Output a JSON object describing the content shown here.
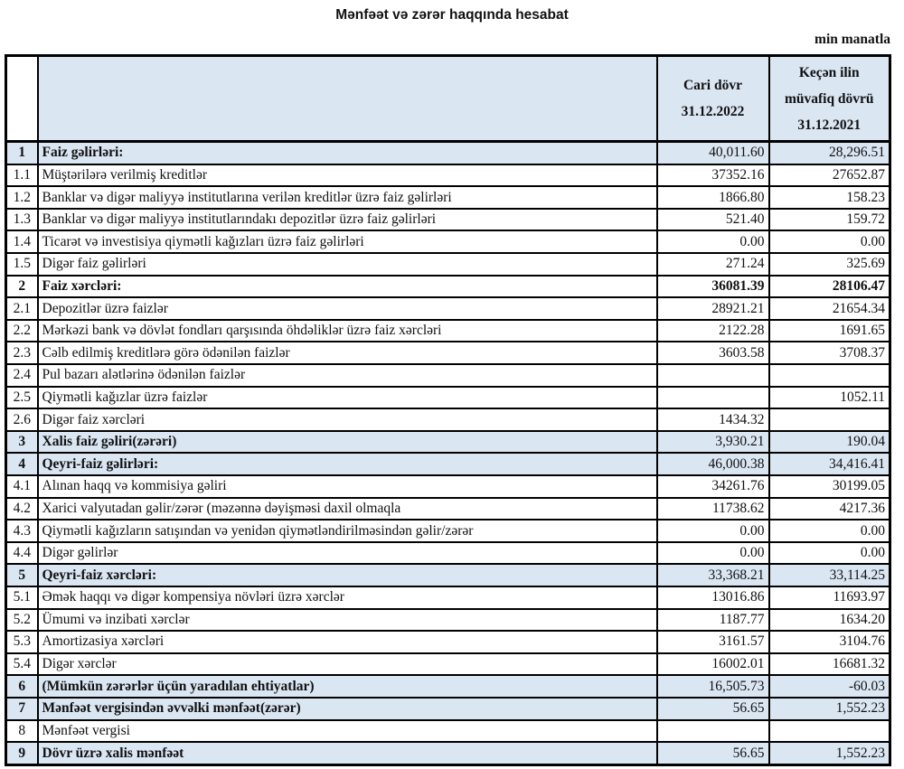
{
  "page": {
    "title": "Mənfəət və zərər haqqında hesabat",
    "unit_note": "min manatla"
  },
  "colors": {
    "shaded_bg": "#dbe6f3",
    "border": "#000000"
  },
  "table": {
    "columns": {
      "current": [
        "Cari dövr",
        "31.12.2022"
      ],
      "previous": [
        "Keçən ilin",
        "müvafiq dövrü",
        "31.12.2021"
      ]
    },
    "rows": [
      {
        "num": "1",
        "label": "Faiz gəlirləri:",
        "v2022": "40,011.60",
        "v2021": "28,296.51",
        "bold": true,
        "shaded": true,
        "values_bold": false
      },
      {
        "num": "1.1",
        "label": "Müştərilərə verilmiş kreditlər",
        "v2022": "37352.16",
        "v2021": "27652.87",
        "bold": false,
        "shaded": false,
        "values_bold": false
      },
      {
        "num": "1.2",
        "label": "Banklar və digər maliyyə institutlarına verilən kreditlər üzrə faiz gəlirləri",
        "v2022": "1866.80",
        "v2021": "158.23",
        "bold": false,
        "shaded": false,
        "values_bold": false
      },
      {
        "num": "1.3",
        "label": "Banklar və digər maliyyə institutlarındakı depozitlər üzrə faiz gəlirləri",
        "v2022": "521.40",
        "v2021": "159.72",
        "bold": false,
        "shaded": false,
        "values_bold": false
      },
      {
        "num": "1.4",
        "label": "Ticarət və investisiya qiymətli kağızları üzrə faiz gəlirləri",
        "v2022": "0.00",
        "v2021": "0.00",
        "bold": false,
        "shaded": false,
        "values_bold": false
      },
      {
        "num": "1.5",
        "label": "Digər faiz gəlirləri",
        "v2022": "271.24",
        "v2021": "325.69",
        "bold": false,
        "shaded": false,
        "values_bold": false
      },
      {
        "num": "2",
        "label": "Faiz xərcləri:",
        "v2022": "36081.39",
        "v2021": "28106.47",
        "bold": true,
        "shaded": false,
        "values_bold": true
      },
      {
        "num": "2.1",
        "label": "Depozitlər üzrə faizlər",
        "v2022": "28921.21",
        "v2021": "21654.34",
        "bold": false,
        "shaded": false,
        "values_bold": false
      },
      {
        "num": "2.2",
        "label": "Mərkəzi bank və dövlət fondları qarşısında öhdəliklər üzrə faiz xərcləri",
        "v2022": "2122.28",
        "v2021": "1691.65",
        "bold": false,
        "shaded": false,
        "values_bold": false
      },
      {
        "num": "2.3",
        "label": "Cəlb edilmiş kreditlərə görə ödənilən faizlər",
        "v2022": "3603.58",
        "v2021": "3708.37",
        "bold": false,
        "shaded": false,
        "values_bold": false
      },
      {
        "num": "2.4",
        "label": "Pul bazarı alətlərinə ödənilən faizlər",
        "v2022": "",
        "v2021": "",
        "bold": false,
        "shaded": false,
        "values_bold": false
      },
      {
        "num": "2.5",
        "label": "Qiymətli kağızlar üzrə faizlər",
        "v2022": "",
        "v2021": "1052.11",
        "bold": false,
        "shaded": false,
        "values_bold": false
      },
      {
        "num": "2.6",
        "label": "Digər faiz xərcləri",
        "v2022": "1434.32",
        "v2021": "",
        "bold": false,
        "shaded": false,
        "values_bold": false
      },
      {
        "num": "3",
        "label": "Xalis faiz gəliri(zərəri)",
        "v2022": "3,930.21",
        "v2021": "190.04",
        "bold": true,
        "shaded": true,
        "values_bold": false
      },
      {
        "num": "4",
        "label": "Qeyri-faiz gəlirləri:",
        "v2022": "46,000.38",
        "v2021": "34,416.41",
        "bold": true,
        "shaded": true,
        "values_bold": false
      },
      {
        "num": "4.1",
        "label": "Alınan haqq və kommisiya gəliri",
        "v2022": "34261.76",
        "v2021": "30199.05",
        "bold": false,
        "shaded": false,
        "values_bold": false
      },
      {
        "num": "4.2",
        "label": "Xarici valyutadan gəlir/zərər (məzənnə dəyişməsi daxil olmaqla",
        "v2022": "11738.62",
        "v2021": "4217.36",
        "bold": false,
        "shaded": false,
        "values_bold": false
      },
      {
        "num": "4.3",
        "label": "Qiymətli kağızların satışından və yenidən qiymətləndirilməsindən gəlir/zərər",
        "v2022": "0.00",
        "v2021": "0.00",
        "bold": false,
        "shaded": false,
        "values_bold": false
      },
      {
        "num": "4.4",
        "label": "Digər gəlirlər",
        "v2022": "0.00",
        "v2021": "0.00",
        "bold": false,
        "shaded": false,
        "values_bold": false
      },
      {
        "num": "5",
        "label": "Qeyri-faiz xərcləri:",
        "v2022": "33,368.21",
        "v2021": "33,114.25",
        "bold": true,
        "shaded": true,
        "values_bold": false
      },
      {
        "num": "5.1",
        "label": "Əmək haqqı və digər kompensiya növləri üzrə xərclər",
        "v2022": "13016.86",
        "v2021": "11693.97",
        "bold": false,
        "shaded": false,
        "values_bold": false
      },
      {
        "num": "5.2",
        "label": "Ümumi və inzibati xərclər",
        "v2022": "1187.77",
        "v2021": "1634.20",
        "bold": false,
        "shaded": false,
        "values_bold": false
      },
      {
        "num": "5.3",
        "label": "Amortizasiya xərcləri",
        "v2022": "3161.57",
        "v2021": "3104.76",
        "bold": false,
        "shaded": false,
        "values_bold": false
      },
      {
        "num": "5.4",
        "label": "Digər xərclər",
        "v2022": "16002.01",
        "v2021": "16681.32",
        "bold": false,
        "shaded": false,
        "values_bold": false
      },
      {
        "num": "6",
        "label": "(Mümkün zərərlər üçün yaradılan ehtiyatlar)",
        "v2022": "16,505.73",
        "v2021": "-60.03",
        "bold": true,
        "shaded": true,
        "values_bold": false
      },
      {
        "num": "7",
        "label": "Mənfəət vergisindən əvvəlki mənfəət(zərər)",
        "v2022": "56.65",
        "v2021": "1,552.23",
        "bold": true,
        "shaded": true,
        "values_bold": false
      },
      {
        "num": "8",
        "label": "Mənfəət vergisi",
        "v2022": "",
        "v2021": "",
        "bold": false,
        "shaded": false,
        "values_bold": false
      },
      {
        "num": "9",
        "label": "Dövr üzrə xalis mənfəət",
        "v2022": "56.65",
        "v2021": "1,552.23",
        "bold": true,
        "shaded": true,
        "values_bold": false
      }
    ]
  }
}
